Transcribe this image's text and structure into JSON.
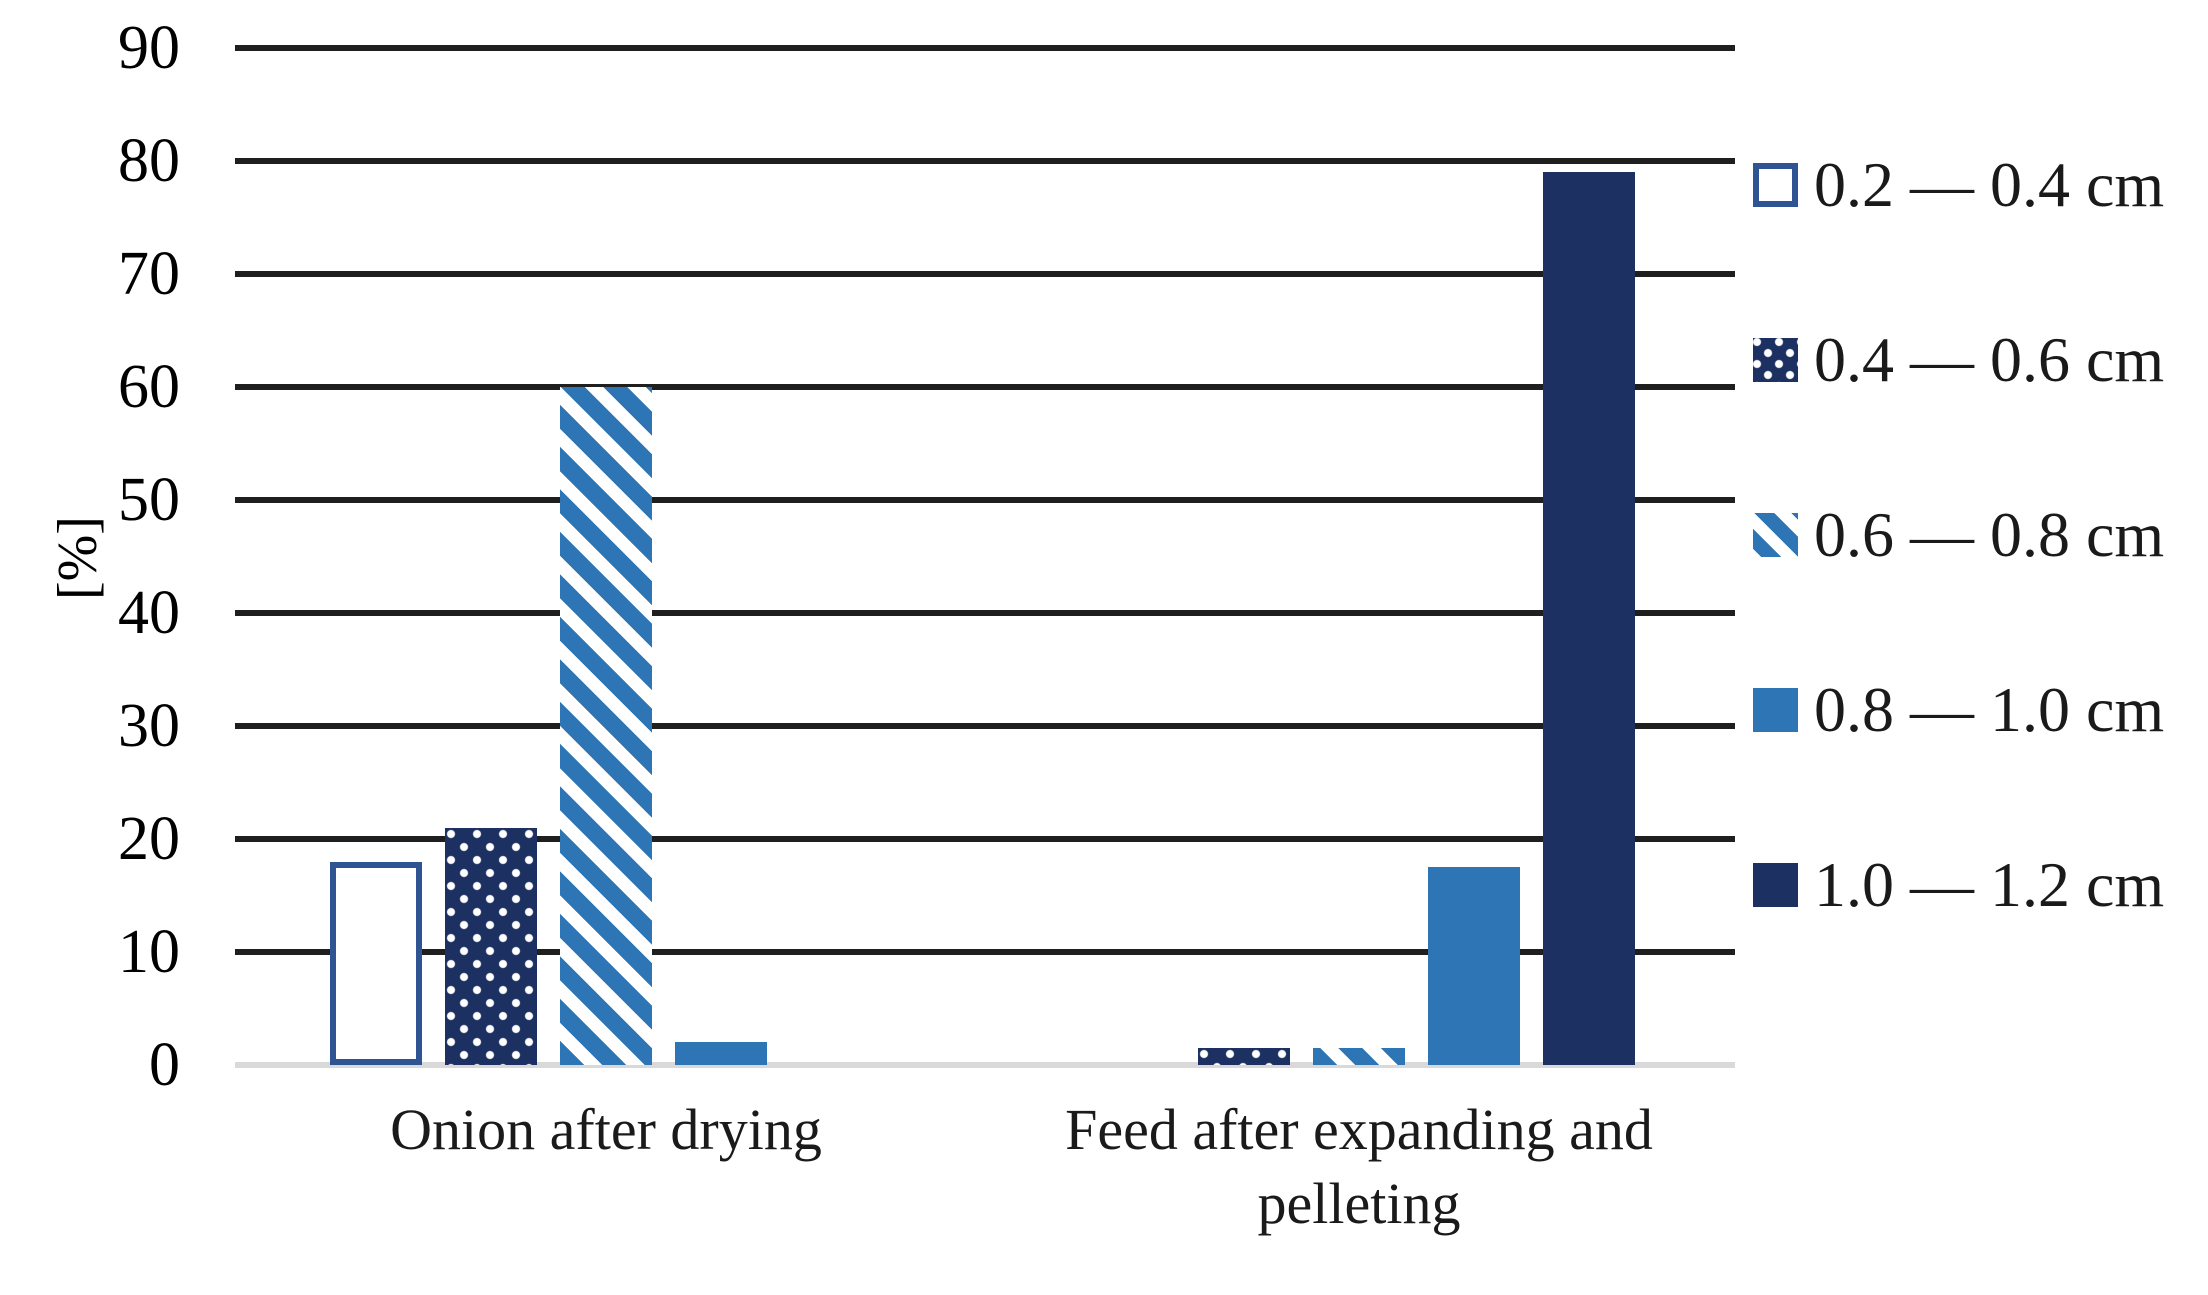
{
  "chart_data": {
    "type": "bar",
    "title": "",
    "ylabel": "[%]",
    "xlabel": "",
    "categories": [
      "Onion after drying",
      "Feed after expanding and pelleting"
    ],
    "series": [
      {
        "name": "0.2 — 0.4 cm",
        "pattern": "open",
        "values": [
          18,
          0
        ]
      },
      {
        "name": "0.4 — 0.6 cm",
        "pattern": "dots",
        "values": [
          21,
          1.5
        ]
      },
      {
        "name": "0.6 — 0.8 cm",
        "pattern": "stripes",
        "values": [
          60,
          1.5
        ]
      },
      {
        "name": "0.8 — 1.0 cm",
        "pattern": "solid-mid",
        "values": [
          2,
          17.5
        ]
      },
      {
        "name": "1.0 — 1.2 cm",
        "pattern": "solid-navy",
        "values": [
          0,
          79
        ]
      }
    ],
    "ylim": [
      0,
      90
    ],
    "yticks": [
      90,
      80,
      70,
      60,
      50,
      40,
      30,
      20,
      10,
      0
    ],
    "grid": true,
    "legend_position": "right",
    "colors": {
      "navy": "#1c3161",
      "medium_blue": "#2e75b6",
      "open_bar_border": "#2f5493",
      "gridline": "#1f1f1f",
      "baseline": "#d9d9d9",
      "background": "#ffffff",
      "text": "#1a1a1a"
    }
  }
}
